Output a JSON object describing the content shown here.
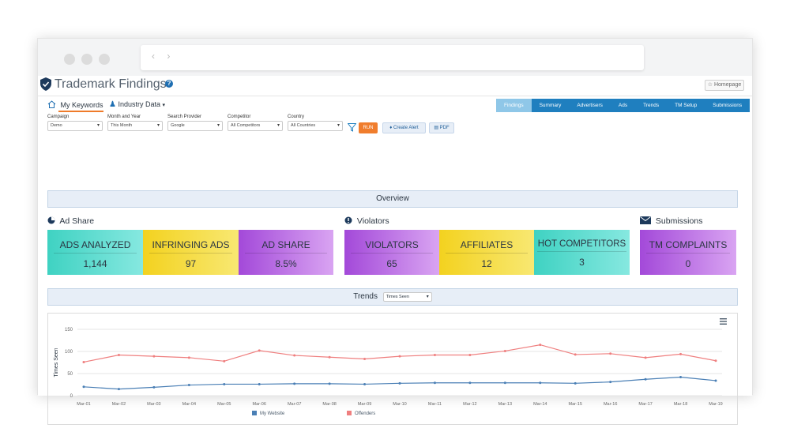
{
  "app": {
    "title": "Trademark Findings",
    "help_icon": "?",
    "homepage_label": "Homepage"
  },
  "tabs": {
    "my_keywords": "My Keywords",
    "industry_data": "Industry Data"
  },
  "nav": {
    "items": [
      "Findings",
      "Summary",
      "Advertisers",
      "Ads",
      "Trends",
      "TM Setup",
      "Submissions"
    ],
    "active": "Findings",
    "color": "#1f7fbf"
  },
  "filters": {
    "campaign": {
      "label": "Campaign",
      "value": "Demo"
    },
    "month_year": {
      "label": "Month and Year",
      "value": "This Month"
    },
    "search_provider": {
      "label": "Search Provider",
      "value": "Google"
    },
    "competitor": {
      "label": "Competitor",
      "value": "All Competitors"
    },
    "country": {
      "label": "Country",
      "value": "All Countries"
    },
    "run_label": "RUN",
    "create_alert_label": "Create Alert",
    "pdf_label": "PDF"
  },
  "overview": {
    "title": "Overview"
  },
  "groups": {
    "ad_share": "Ad Share",
    "violators": "Violators",
    "submissions": "Submissions"
  },
  "cards": [
    {
      "label": "ADS ANALYZED",
      "value": "1,144",
      "color": "teal"
    },
    {
      "label": "INFRINGING ADS",
      "value": "97",
      "color": "yellow"
    },
    {
      "label": "AD SHARE",
      "value": "8.5%",
      "color": "purple"
    },
    {
      "label": "VIOLATORS",
      "value": "65",
      "color": "purple"
    },
    {
      "label": "AFFILIATES",
      "value": "12",
      "color": "yellow"
    },
    {
      "label": "HOT COMPETITORS",
      "value": "3",
      "color": "teal"
    },
    {
      "label": "TM COMPLAINTS",
      "value": "0",
      "color": "purple"
    }
  ],
  "trends": {
    "title": "Trends",
    "select_value": "Times Seen"
  },
  "chart_data": {
    "type": "line",
    "ylabel": "Times Seen",
    "ylim": [
      0,
      150
    ],
    "yticks": [
      0,
      50,
      100,
      150
    ],
    "categories": [
      "Mar-01",
      "Mar-02",
      "Mar-03",
      "Mar-04",
      "Mar-05",
      "Mar-06",
      "Mar-07",
      "Mar-08",
      "Mar-09",
      "Mar-10",
      "Mar-11",
      "Mar-12",
      "Mar-13",
      "Mar-14",
      "Mar-15",
      "Mar-16",
      "Mar-17",
      "Mar-18",
      "Mar-19"
    ],
    "series": [
      {
        "name": "My Website",
        "color": "#4a7fb5",
        "values": [
          20,
          15,
          19,
          24,
          26,
          26,
          27,
          27,
          26,
          28,
          29,
          29,
          29,
          29,
          28,
          31,
          37,
          42,
          34
        ]
      },
      {
        "name": "Offenders",
        "color": "#ef7f7f",
        "values": [
          76,
          92,
          89,
          86,
          78,
          102,
          91,
          87,
          83,
          89,
          92,
          92,
          101,
          115,
          93,
          95,
          86,
          94,
          79
        ]
      }
    ],
    "grid": true,
    "legend": "bottom"
  }
}
